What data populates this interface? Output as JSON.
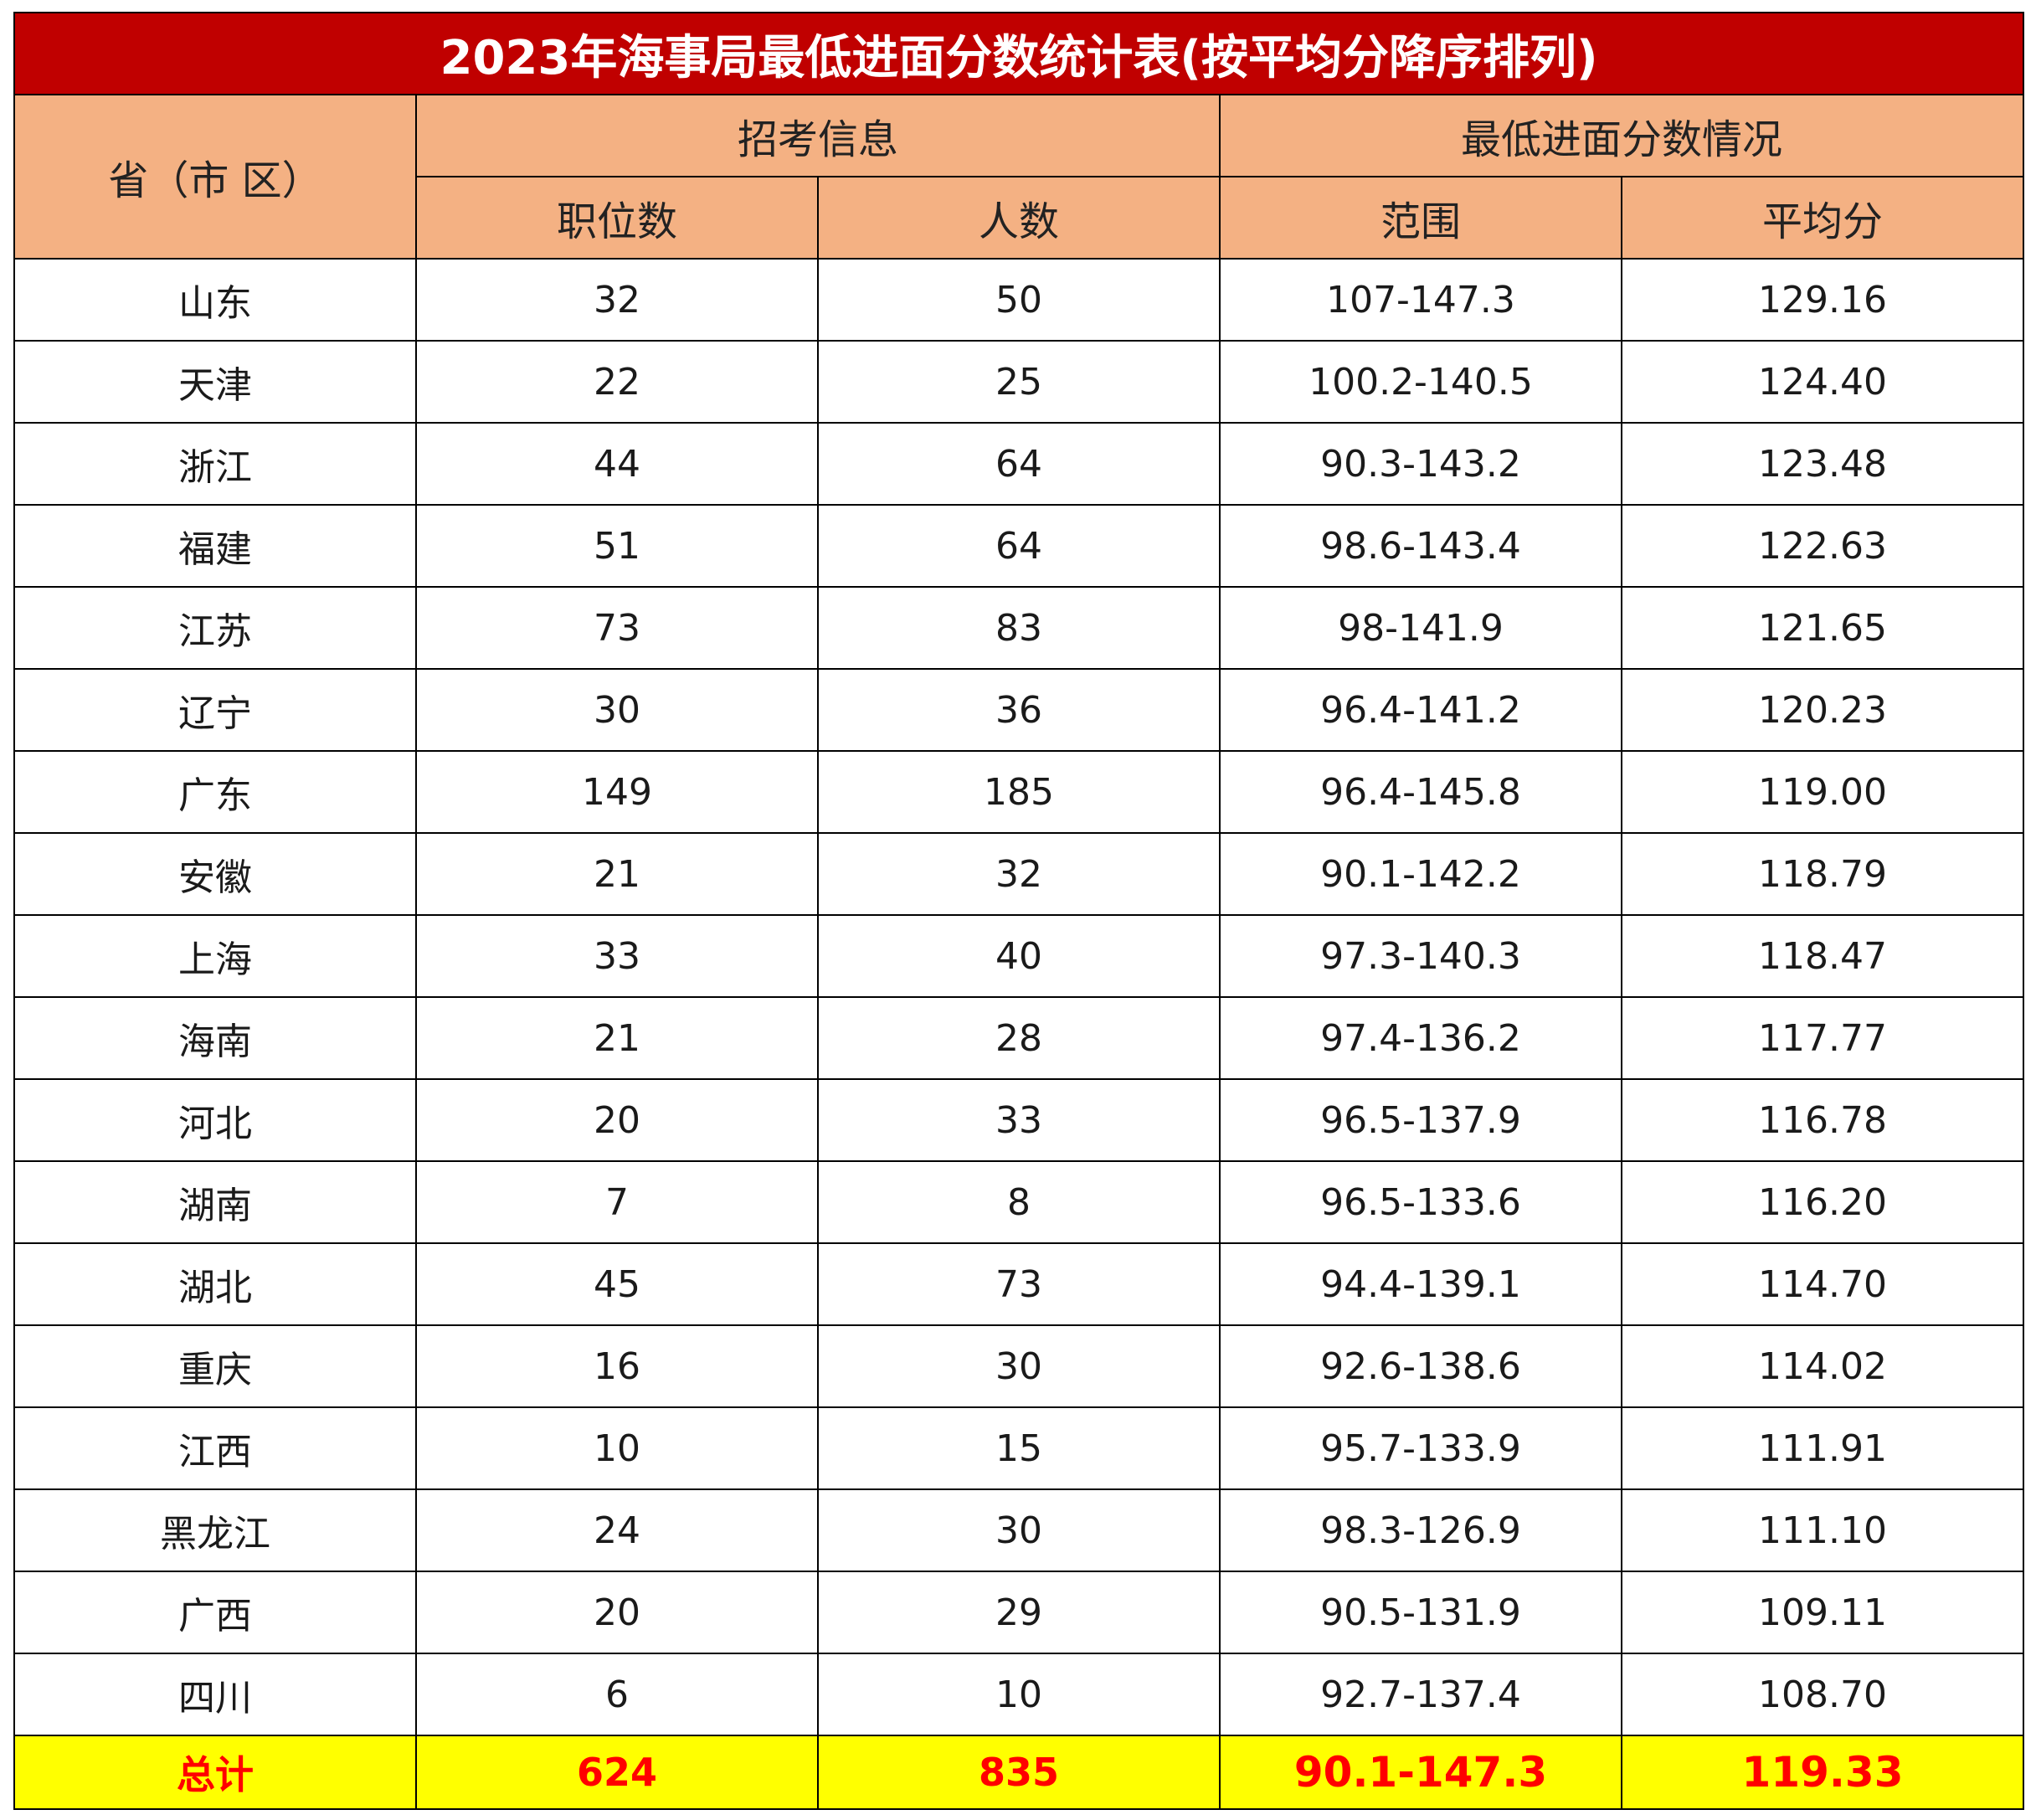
{
  "title": "2023年海事局最低进面分数统计表(按平均分降序排列)",
  "headers": {
    "region": "省（市 区）",
    "recruit_group": "招考信息",
    "score_group": "最低进面分数情况",
    "positions": "职位数",
    "people": "人数",
    "range": "范围",
    "average": "平均分"
  },
  "rows": [
    {
      "region": "山东",
      "positions": "32",
      "people": "50",
      "range": "107-147.3",
      "average": "129.16"
    },
    {
      "region": "天津",
      "positions": "22",
      "people": "25",
      "range": "100.2-140.5",
      "average": "124.40"
    },
    {
      "region": "浙江",
      "positions": "44",
      "people": "64",
      "range": "90.3-143.2",
      "average": "123.48"
    },
    {
      "region": "福建",
      "positions": "51",
      "people": "64",
      "range": "98.6-143.4",
      "average": "122.63"
    },
    {
      "region": "江苏",
      "positions": "73",
      "people": "83",
      "range": "98-141.9",
      "average": "121.65"
    },
    {
      "region": "辽宁",
      "positions": "30",
      "people": "36",
      "range": "96.4-141.2",
      "average": "120.23"
    },
    {
      "region": "广东",
      "positions": "149",
      "people": "185",
      "range": "96.4-145.8",
      "average": "119.00"
    },
    {
      "region": "安徽",
      "positions": "21",
      "people": "32",
      "range": "90.1-142.2",
      "average": "118.79"
    },
    {
      "region": "上海",
      "positions": "33",
      "people": "40",
      "range": "97.3-140.3",
      "average": "118.47"
    },
    {
      "region": "海南",
      "positions": "21",
      "people": "28",
      "range": "97.4-136.2",
      "average": "117.77"
    },
    {
      "region": "河北",
      "positions": "20",
      "people": "33",
      "range": "96.5-137.9",
      "average": "116.78"
    },
    {
      "region": "湖南",
      "positions": "7",
      "people": "8",
      "range": "96.5-133.6",
      "average": "116.20"
    },
    {
      "region": "湖北",
      "positions": "45",
      "people": "73",
      "range": "94.4-139.1",
      "average": "114.70"
    },
    {
      "region": "重庆",
      "positions": "16",
      "people": "30",
      "range": "92.6-138.6",
      "average": "114.02"
    },
    {
      "region": "江西",
      "positions": "10",
      "people": "15",
      "range": "95.7-133.9",
      "average": "111.91"
    },
    {
      "region": "黑龙江",
      "positions": "24",
      "people": "30",
      "range": "98.3-126.9",
      "average": "111.10"
    },
    {
      "region": "广西",
      "positions": "20",
      "people": "29",
      "range": "90.5-131.9",
      "average": "109.11"
    },
    {
      "region": "四川",
      "positions": "6",
      "people": "10",
      "range": "92.7-137.4",
      "average": "108.70"
    }
  ],
  "total": {
    "region": "总计",
    "positions": "624",
    "people": "835",
    "range": "90.1-147.3",
    "average": "119.33"
  },
  "colors": {
    "title_bg": "#c00000",
    "header_bg": "#f4b183",
    "total_bg": "#ffff00",
    "total_text": "#ff0000"
  }
}
